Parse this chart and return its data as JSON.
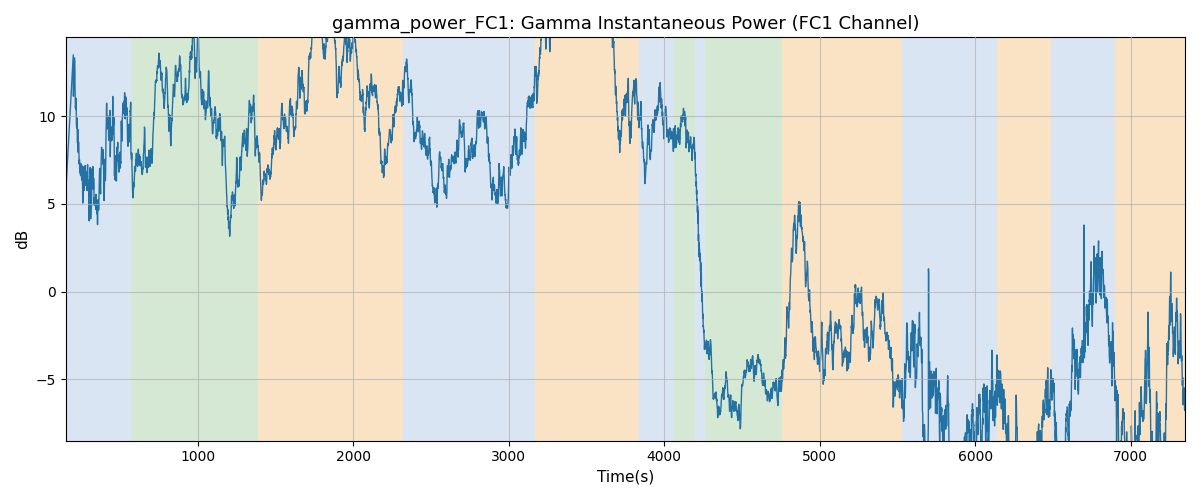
{
  "title": "gamma_power_FC1: Gamma Instantaneous Power (FC1 Channel)",
  "xlabel": "Time(s)",
  "ylabel": "dB",
  "xlim": [
    150,
    7350
  ],
  "ylim": [
    -8.5,
    14.5
  ],
  "line_color": "#2472a4",
  "line_width": 1.0,
  "bg_regions": [
    {
      "xstart": 150,
      "xend": 570,
      "color": "#aec6e8",
      "alpha": 0.45
    },
    {
      "xstart": 570,
      "xend": 1390,
      "color": "#90c490",
      "alpha": 0.38
    },
    {
      "xstart": 1390,
      "xend": 2320,
      "color": "#f5c98a",
      "alpha": 0.5
    },
    {
      "xstart": 2320,
      "xend": 3170,
      "color": "#aec6e8",
      "alpha": 0.45
    },
    {
      "xstart": 3170,
      "xend": 3840,
      "color": "#f5c98a",
      "alpha": 0.5
    },
    {
      "xstart": 3840,
      "xend": 4060,
      "color": "#aec6e8",
      "alpha": 0.45
    },
    {
      "xstart": 4060,
      "xend": 4200,
      "color": "#90c490",
      "alpha": 0.38
    },
    {
      "xstart": 4200,
      "xend": 4260,
      "color": "#aec6e8",
      "alpha": 0.45
    },
    {
      "xstart": 4260,
      "xend": 4760,
      "color": "#90c490",
      "alpha": 0.38
    },
    {
      "xstart": 4760,
      "xend": 5530,
      "color": "#f5c98a",
      "alpha": 0.5
    },
    {
      "xstart": 5530,
      "xend": 6140,
      "color": "#aec6e8",
      "alpha": 0.45
    },
    {
      "xstart": 6140,
      "xend": 6490,
      "color": "#f5c98a",
      "alpha": 0.5
    },
    {
      "xstart": 6490,
      "xend": 6900,
      "color": "#aec6e8",
      "alpha": 0.45
    },
    {
      "xstart": 6900,
      "xend": 7350,
      "color": "#f5c98a",
      "alpha": 0.5
    }
  ],
  "seed": 42,
  "title_fontsize": 13,
  "label_fontsize": 11,
  "tick_fontsize": 10,
  "grid_color": "#b0b0b0",
  "grid_alpha": 0.7,
  "grid_linewidth": 0.8,
  "figure_facecolor": "#ffffff",
  "axes_facecolor": "#ffffff"
}
